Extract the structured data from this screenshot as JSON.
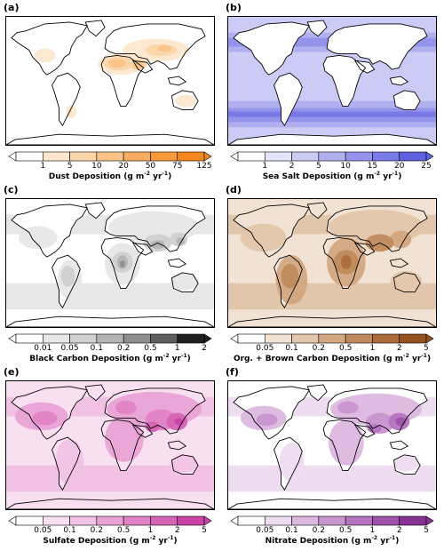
{
  "panels": [
    {
      "id": "a",
      "label": "(a)",
      "title_html": "Dust Deposition (g m<sup>-2</sup> yr<sup>-1</sup>)",
      "title_text": "Dust Deposition (g m-2 yr-1)",
      "ticks": [
        "1",
        "5",
        "10",
        "20",
        "50",
        "75",
        "125"
      ],
      "colors": [
        "#ffffff",
        "#fde8cf",
        "#fcd6ab",
        "#fbc386",
        "#f9ae5f",
        "#f79a3c",
        "#f5871f"
      ],
      "ocean_level": 0,
      "land_pattern": "dust"
    },
    {
      "id": "b",
      "label": "(b)",
      "title_html": "Sea Salt Deposition (g m<sup>-2</sup> yr<sup>-1</sup>)",
      "title_text": "Sea Salt Deposition (g m-2 yr-1)",
      "ticks": [
        "1",
        "2",
        "5",
        "10",
        "15",
        "20",
        "25"
      ],
      "colors": [
        "#ffffff",
        "#e6e6fb",
        "#cbcbf6",
        "#b0b0f1",
        "#9494ec",
        "#7a7ae6",
        "#6060e0"
      ],
      "ocean_level": 3,
      "land_pattern": "none"
    },
    {
      "id": "c",
      "label": "(c)",
      "title_html": "Black Carbon Deposition (g m<sup>-2</sup> yr<sup>-1</sup>)",
      "title_text": "Black Carbon Deposition (g m-2 yr-1)",
      "ticks": [
        "0.01",
        "0.05",
        "0.1",
        "0.2",
        "0.5",
        "1",
        "2"
      ],
      "colors": [
        "#ffffff",
        "#e7e7e7",
        "#d0d0d0",
        "#b4b4b4",
        "#8f8f8f",
        "#5e5e5e",
        "#1f1f1f"
      ],
      "ocean_level": 1,
      "land_pattern": "bc"
    },
    {
      "id": "d",
      "label": "(d)",
      "title_html": "Org. + Brown Carbon Deposition (g m<sup>-2</sup> yr<sup>-1</sup>)",
      "title_text": "Org. + Brown Carbon Deposition (g m-2 yr-1)",
      "ticks": [
        "0.05",
        "0.1",
        "0.2",
        "0.5",
        "1",
        "2",
        "5"
      ],
      "colors": [
        "#ffffff",
        "#f1e2d4",
        "#e2c6ab",
        "#d2a882",
        "#c08a5c",
        "#ab6d3b",
        "#94521f"
      ],
      "ocean_level": 2,
      "land_pattern": "oc"
    },
    {
      "id": "e",
      "label": "(e)",
      "title_html": "Sulfate Deposition (g m<sup>-2</sup> yr<sup>-1</sup>)",
      "title_text": "Sulfate Deposition (g m-2 yr-1)",
      "ticks": [
        "0.05",
        "0.1",
        "0.2",
        "0.5",
        "1",
        "2",
        "5"
      ],
      "colors": [
        "#ffffff",
        "#f8e0f1",
        "#f1c2e4",
        "#e9a2d5",
        "#e083c6",
        "#d563b5",
        "#c943a4"
      ],
      "ocean_level": 2,
      "land_pattern": "so4"
    },
    {
      "id": "f",
      "label": "(f)",
      "title_html": "Nitrate Deposition (g m<sup>-2</sup> yr<sup>-1</sup>)",
      "title_text": "Nitrate Deposition (g m-2 yr-1)",
      "ticks": [
        "0.05",
        "0.1",
        "0.2",
        "0.5",
        "1",
        "2",
        "5"
      ],
      "colors": [
        "#ffffff",
        "#eedcf0",
        "#dcb8e0",
        "#c995cf",
        "#b574bf",
        "#9e52ab",
        "#863294"
      ],
      "ocean_level": 1,
      "land_pattern": "no3"
    }
  ]
}
